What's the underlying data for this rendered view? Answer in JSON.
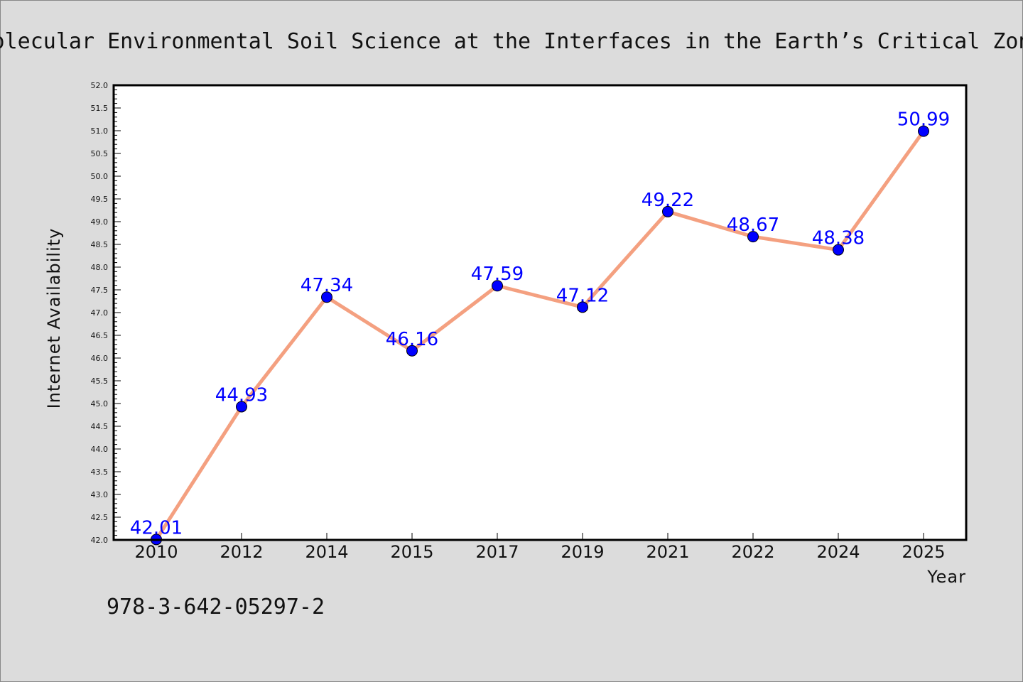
{
  "chart_data": {
    "type": "line",
    "title": "Molecular Environmental Soil Science at the Interfaces in the Earth’s Critical Zone",
    "xlabel": "Year",
    "ylabel": "Internet Availability",
    "categories": [
      "2010",
      "2012",
      "2014",
      "2015",
      "2017",
      "2019",
      "2021",
      "2022",
      "2024",
      "2025"
    ],
    "series": [
      {
        "values": [
          42.01,
          44.93,
          47.34,
          46.16,
          47.59,
          47.12,
          49.22,
          48.67,
          48.38,
          50.99
        ],
        "labels": [
          "42.01",
          "44.93",
          "47.34",
          "46.16",
          "47.59",
          "47.12",
          "49.22",
          "48.67",
          "48.38",
          "50.99"
        ]
      }
    ],
    "ylim": [
      42.0,
      52.0
    ],
    "ytick_step": 0.5,
    "yticks": [
      "42.0",
      "42.5",
      "43.0",
      "43.5",
      "44.0",
      "44.5",
      "45.0",
      "45.5",
      "46.0",
      "46.5",
      "47.0",
      "47.5",
      "48.0",
      "48.5",
      "49.0",
      "49.5",
      "50.0",
      "50.5",
      "51.0",
      "51.5",
      "52.0"
    ],
    "grid": false,
    "line_color": "#f4a080",
    "marker_color": "#0000ff",
    "label_color": "#0000ff",
    "background_color": "#dcdcdc",
    "plot_background_color": "#ffffff"
  },
  "footer": {
    "isbn": "978-3-642-05297-2"
  }
}
